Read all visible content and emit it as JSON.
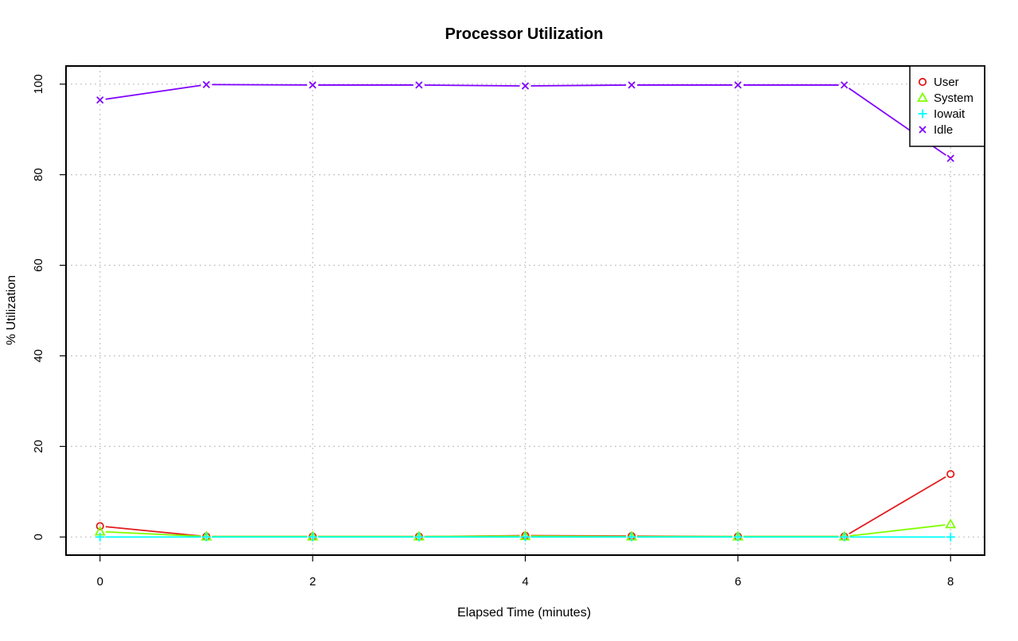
{
  "chart_data": {
    "type": "line",
    "title": "Processor Utilization",
    "xlabel": "Elapsed Time (minutes)",
    "ylabel": "% Utilization",
    "x": [
      0,
      1,
      2,
      3,
      4,
      5,
      6,
      7,
      8
    ],
    "xlim": [
      -0.32,
      8.32
    ],
    "ylim": [
      -4,
      104
    ],
    "x_ticks": [
      0,
      2,
      4,
      6,
      8
    ],
    "y_ticks": [
      0,
      20,
      40,
      60,
      80,
      100
    ],
    "grid": true,
    "legend_position": "top-right",
    "series": [
      {
        "name": "User",
        "color": "#e31a1c",
        "marker": "circle",
        "values": [
          2.4,
          0.1,
          0.1,
          0.1,
          0.3,
          0.2,
          0.1,
          0.1,
          13.9
        ]
      },
      {
        "name": "System",
        "color": "#80ff00",
        "marker": "triangle",
        "values": [
          1.2,
          0.1,
          0.1,
          0.1,
          0.2,
          0.1,
          0.1,
          0.1,
          2.8
        ]
      },
      {
        "name": "Iowait",
        "color": "#00ffff",
        "marker": "plus",
        "values": [
          0.0,
          0.0,
          0.0,
          0.0,
          0.0,
          0.0,
          0.0,
          0.0,
          0.0
        ]
      },
      {
        "name": "Idle",
        "color": "#8000ff",
        "marker": "cross",
        "values": [
          96.5,
          99.9,
          99.8,
          99.8,
          99.6,
          99.8,
          99.8,
          99.8,
          83.6
        ]
      }
    ]
  }
}
